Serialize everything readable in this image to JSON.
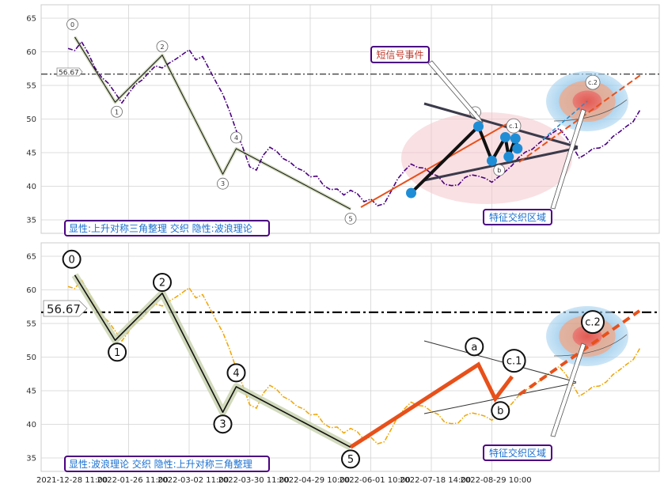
{
  "chart_data": [
    {
      "type": "line",
      "ylim": [
        33,
        67
      ],
      "yticks": [
        35,
        40,
        45,
        50,
        55,
        60,
        65
      ],
      "grid": true,
      "xlim": [
        0,
        92
      ],
      "reference_line": {
        "value": 56.67,
        "label": "56.67"
      },
      "caption": "显性:上升对称三角整理 交织 隐性:波浪理论",
      "price_series": {
        "color": "#4b0082",
        "x": [
          0,
          1,
          2,
          3,
          4,
          5,
          6,
          7,
          8,
          9,
          10,
          11,
          12,
          13,
          14,
          15,
          16,
          17,
          18,
          19,
          20,
          21,
          22,
          23,
          24,
          25,
          26,
          27,
          28,
          29,
          30,
          31,
          32,
          33,
          34,
          35,
          36,
          37,
          38,
          39,
          40,
          41,
          42,
          43,
          44,
          45,
          46,
          47,
          48,
          49,
          50,
          51,
          52,
          53,
          54,
          55,
          56,
          57,
          58,
          59,
          60,
          61,
          62,
          63,
          64,
          65,
          66,
          67,
          68,
          69,
          70,
          71,
          72,
          73,
          74,
          75,
          76,
          77,
          78,
          79,
          80,
          81,
          82,
          83,
          84,
          85
        ],
        "y": [
          60.5,
          60.2,
          61.5,
          59.8,
          57.6,
          56.2,
          55.3,
          53.9,
          52.4,
          53.8,
          55.1,
          55.8,
          56.9,
          57.9,
          57.6,
          58.3,
          58.9,
          59.6,
          60.3,
          58.8,
          59.3,
          57.4,
          55.5,
          53.7,
          51.2,
          48.3,
          45.7,
          42.9,
          42.4,
          44.6,
          45.8,
          45.2,
          44.1,
          43.6,
          42.7,
          42.3,
          41.4,
          41.5,
          40.1,
          39.5,
          39.6,
          38.7,
          39.4,
          38.9,
          37.7,
          38.1,
          37.1,
          37.4,
          39.2,
          41.1,
          42.3,
          43.3,
          42.8,
          42.7,
          41.9,
          41.5,
          40.3,
          40.1,
          40.2,
          41.3,
          41.7,
          41.5,
          41.2,
          40.6,
          41.4,
          42.2,
          43.1,
          44.3,
          45.1,
          45.5,
          46.4,
          47.2,
          47.9,
          48.6,
          47.4,
          45.9,
          44.2,
          44.8,
          45.6,
          45.7,
          46.3,
          47.4,
          48.1,
          48.9,
          49.6,
          51.3
        ]
      },
      "wave_points": [
        {
          "label": "0",
          "x": 1,
          "y": 62.2
        },
        {
          "label": "1",
          "x": 7,
          "y": 52.5
        },
        {
          "label": "2",
          "x": 14,
          "y": 59.5
        },
        {
          "label": "3",
          "x": 23,
          "y": 41.8
        },
        {
          "label": "4",
          "x": 25,
          "y": 45.6
        },
        {
          "label": "5",
          "x": 42,
          "y": 36.6
        }
      ],
      "abc_points": [
        {
          "label": "a",
          "x": 61,
          "y": 48.9
        },
        {
          "label": "b",
          "x": 63.5,
          "y": 43.8
        },
        {
          "label": "c.1",
          "x": 66,
          "y": 47.1
        },
        {
          "label": "c.2",
          "x": 78,
          "y": 56.4
        }
      ],
      "triangle_points": [
        {
          "x": 51,
          "y": 39.0
        },
        {
          "x": 61,
          "y": 48.9
        },
        {
          "x": 63,
          "y": 43.8
        },
        {
          "x": 65,
          "y": 47.3
        },
        {
          "x": 65.5,
          "y": 44.4
        },
        {
          "x": 66.5,
          "y": 47.1
        },
        {
          "x": 66.8,
          "y": 45.6
        }
      ],
      "annotations": [
        {
          "key": "signal",
          "text": "短信号事件"
        },
        {
          "key": "zone",
          "text": "特征交织区域"
        }
      ]
    },
    {
      "type": "line",
      "ylim": [
        33,
        67
      ],
      "yticks": [
        35,
        40,
        45,
        50,
        55,
        60,
        65
      ],
      "grid": true,
      "reference_line": {
        "value": 56.67,
        "label": "56.67"
      },
      "caption": "显性:波浪理论 交织 隐性:上升对称三角整理",
      "price_series": {
        "color": "#f0a500"
      },
      "wave_points": [
        {
          "label": "0",
          "x": 1,
          "y": 62.2
        },
        {
          "label": "1",
          "x": 7,
          "y": 52.5
        },
        {
          "label": "2",
          "x": 14,
          "y": 59.5
        },
        {
          "label": "3",
          "x": 23,
          "y": 41.8
        },
        {
          "label": "4",
          "x": 25,
          "y": 45.6
        },
        {
          "label": "5",
          "x": 42,
          "y": 36.6
        }
      ],
      "abc_points": [
        {
          "label": "a",
          "x": 61,
          "y": 48.9
        },
        {
          "label": "b",
          "x": 63.5,
          "y": 43.8
        },
        {
          "label": "c.1",
          "x": 66,
          "y": 47.1
        },
        {
          "label": "c.2",
          "x": 78,
          "y": 56.4
        }
      ],
      "annotations": [
        {
          "key": "zone",
          "text": "特征交织区域"
        }
      ]
    }
  ],
  "x_tick_labels": [
    {
      "x": 0,
      "label": "2021-12-28 11:00"
    },
    {
      "x": 9,
      "label": "2022-01-26 11:00"
    },
    {
      "x": 18,
      "label": "2022-03-02 11:00"
    },
    {
      "x": 27,
      "label": "2022-03-30 11:00"
    },
    {
      "x": 36,
      "label": "2022-04-29 10:00"
    },
    {
      "x": 45,
      "label": "2022-06-01 10:00"
    },
    {
      "x": 54,
      "label": "2022-07-18 14:00"
    },
    {
      "x": 63,
      "label": "2022-08-29 10:00"
    }
  ],
  "colors": {
    "wave_band": "#c9d3b0",
    "bull_line": "#e8501a",
    "triangle_line": "#3a3a4a",
    "zone_fill": "#f4c6cc",
    "marker": "#1f8dd6",
    "caption_border": "#4b0082"
  }
}
